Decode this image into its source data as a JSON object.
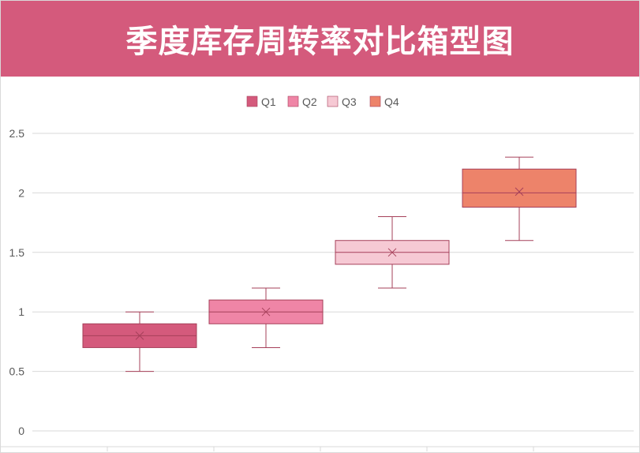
{
  "title": "季度库存周转率对比箱型图",
  "colors": {
    "header": "#d45a7c",
    "whisker": "#a6405a",
    "grid": "#d9d9d9",
    "axis_text": "#595959"
  },
  "chart_data": {
    "type": "boxplot",
    "title": "季度库存周转率对比箱型图",
    "xlabel": "",
    "ylabel": "",
    "ylim": [
      0,
      2.5
    ],
    "yticks": [
      0,
      0.5,
      1,
      1.5,
      2,
      2.5
    ],
    "ytick_labels": [
      "0",
      "0.5",
      "1",
      "1.5",
      "2",
      "2.5"
    ],
    "grid": true,
    "legend_position": "top-center",
    "series": [
      {
        "name": "Q1",
        "color": "#d45a7c",
        "min": 0.5,
        "q1": 0.7,
        "median": 0.8,
        "q3": 0.9,
        "max": 1.0,
        "mean": 0.8
      },
      {
        "name": "Q2",
        "color": "#ef85a6",
        "min": 0.7,
        "q1": 0.9,
        "median": 1.0,
        "q3": 1.1,
        "max": 1.2,
        "mean": 1.0
      },
      {
        "name": "Q3",
        "color": "#f6c9d4",
        "min": 1.2,
        "q1": 1.4,
        "median": 1.5,
        "q3": 1.6,
        "max": 1.8,
        "mean": 1.5
      },
      {
        "name": "Q4",
        "color": "#ed836a",
        "min": 1.6,
        "q1": 1.88,
        "median": 2.0,
        "q3": 2.2,
        "max": 2.3,
        "mean": 2.01
      }
    ]
  }
}
